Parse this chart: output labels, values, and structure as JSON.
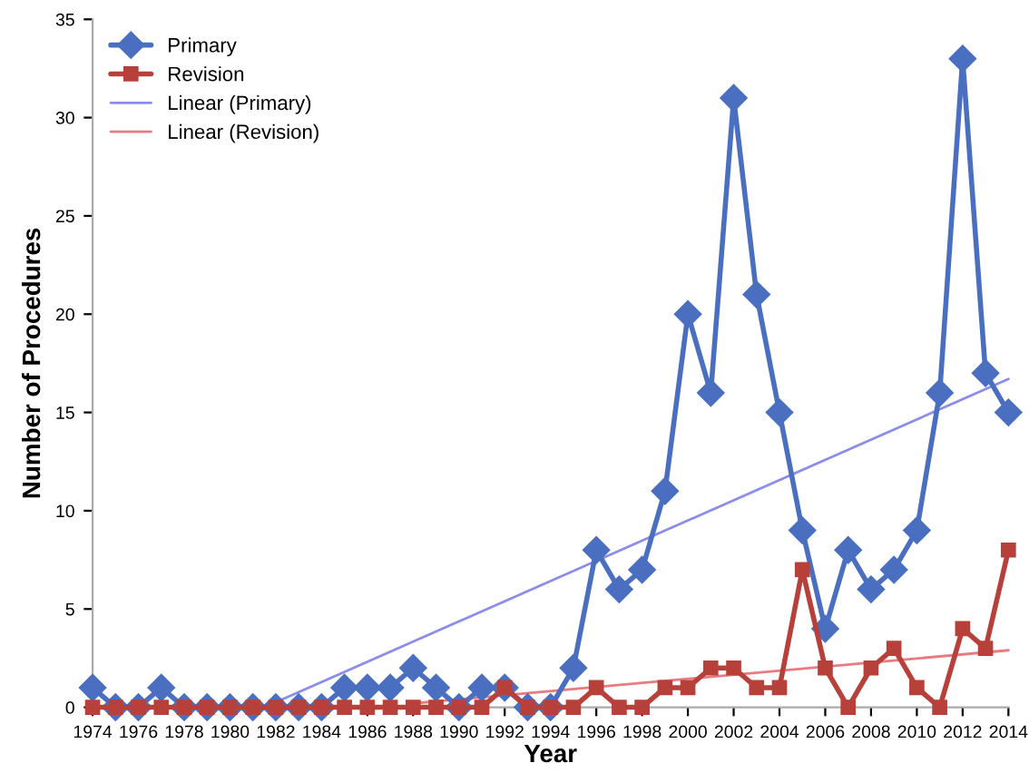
{
  "chart_data": {
    "type": "line",
    "xlabel": "Year",
    "ylabel": "Number of Procedures",
    "x": [
      1974,
      1975,
      1976,
      1977,
      1978,
      1979,
      1980,
      1981,
      1982,
      1983,
      1984,
      1985,
      1986,
      1987,
      1988,
      1989,
      1990,
      1991,
      1992,
      1993,
      1994,
      1995,
      1996,
      1997,
      1998,
      1999,
      2000,
      2001,
      2002,
      2003,
      2004,
      2005,
      2006,
      2007,
      2008,
      2009,
      2010,
      2011,
      2012,
      2013,
      2014
    ],
    "series": [
      {
        "name": "Primary",
        "color": "#4a6fc0",
        "marker": "diamond",
        "values": [
          1,
          0,
          0,
          1,
          0,
          0,
          0,
          0,
          0,
          0,
          0,
          1,
          1,
          1,
          2,
          1,
          0,
          1,
          1,
          0,
          0,
          2,
          8,
          6,
          7,
          11,
          20,
          16,
          31,
          21,
          15,
          9,
          4,
          8,
          6,
          7,
          9,
          16,
          33,
          17,
          15
        ]
      },
      {
        "name": "Revision",
        "color": "#b8403a",
        "marker": "square",
        "values": [
          0,
          0,
          0,
          0,
          0,
          0,
          0,
          0,
          0,
          0,
          0,
          0,
          0,
          0,
          0,
          0,
          0,
          0,
          1,
          0,
          0,
          0,
          1,
          0,
          0,
          1,
          1,
          2,
          2,
          1,
          1,
          7,
          2,
          0,
          2,
          3,
          1,
          0,
          4,
          3,
          8
        ]
      },
      {
        "name": "Linear (Primary)",
        "color": "#8a8ee8",
        "marker": "none",
        "x": [
          1981.5,
          2014
        ],
        "values": [
          0,
          16.7
        ]
      },
      {
        "name": "Linear (Revision)",
        "color": "#e87a80",
        "marker": "none",
        "x": [
          1988,
          2014
        ],
        "values": [
          0.2,
          2.9
        ]
      }
    ],
    "xlim": [
      1974,
      2014
    ],
    "xticks": [
      1974,
      1976,
      1978,
      1980,
      1982,
      1984,
      1986,
      1988,
      1990,
      1992,
      1994,
      1996,
      1998,
      2000,
      2002,
      2004,
      2006,
      2008,
      2010,
      2012,
      2014
    ],
    "ylim": [
      0,
      35
    ],
    "yticks": [
      0,
      5,
      10,
      15,
      20,
      25,
      30,
      35
    ],
    "grid": false,
    "legend": "top left",
    "line_style": "solid"
  }
}
